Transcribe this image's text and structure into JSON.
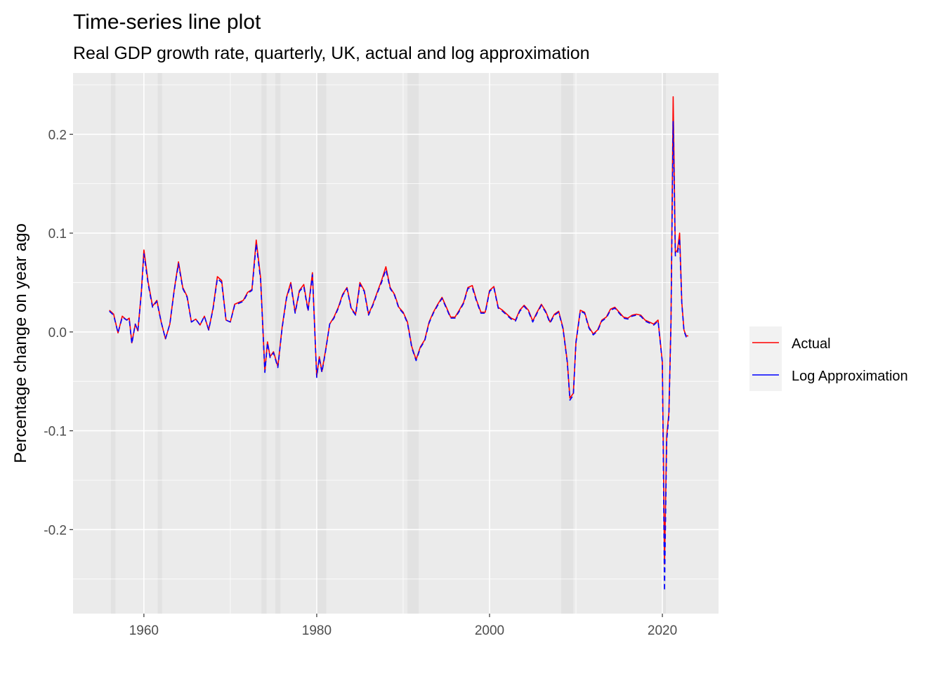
{
  "colors": {
    "panel": "#ebebeb",
    "grid_major": "#ffffff",
    "recession_band": "#d9d9d9",
    "actual": "#ff0000",
    "log_approx": "#0000ff",
    "legend_key_bg": "#f2f2f2"
  },
  "chart_data": {
    "type": "line",
    "title": "Time-series line plot",
    "subtitle": "Real GDP growth rate, quarterly, UK, actual and log approximation",
    "xlabel": "",
    "ylabel": "Percentage change on year ago",
    "xlim": [
      1951.8,
      2026.5
    ],
    "ylim": [
      -0.285,
      0.262
    ],
    "x_ticks": [
      1960,
      1980,
      2000,
      2020
    ],
    "x_tick_labels": [
      "1960",
      "1980",
      "2000",
      "2020"
    ],
    "y_ticks": [
      -0.2,
      -0.1,
      0.0,
      0.1,
      0.2
    ],
    "y_tick_labels": [
      "-0.2",
      "-0.1",
      "0.0",
      "0.1",
      "0.2"
    ],
    "grid": true,
    "legend_position": "right",
    "recession_shading": [
      [
        1956.2,
        1956.7
      ],
      [
        1961.6,
        1962.1
      ],
      [
        1973.6,
        1974.2
      ],
      [
        1975.2,
        1975.8
      ],
      [
        1980.0,
        1981.1
      ],
      [
        1990.5,
        1991.8
      ],
      [
        2008.3,
        2009.7
      ],
      [
        2020.0,
        2020.4
      ]
    ],
    "x": [
      1956.0,
      1956.5,
      1957.0,
      1957.5,
      1958.0,
      1958.3,
      1958.6,
      1959.0,
      1959.3,
      1959.7,
      1960.0,
      1960.5,
      1961.0,
      1961.5,
      1962.0,
      1962.5,
      1963.0,
      1963.5,
      1964.0,
      1964.5,
      1965.0,
      1965.5,
      1966.0,
      1966.5,
      1967.0,
      1967.5,
      1968.0,
      1968.5,
      1969.0,
      1969.5,
      1970.0,
      1970.5,
      1971.0,
      1971.5,
      1972.0,
      1972.5,
      1973.0,
      1973.5,
      1974.0,
      1974.3,
      1974.6,
      1975.0,
      1975.5,
      1976.0,
      1976.5,
      1977.0,
      1977.5,
      1978.0,
      1978.5,
      1979.0,
      1979.5,
      1980.0,
      1980.3,
      1980.6,
      1981.0,
      1981.5,
      1982.0,
      1982.5,
      1983.0,
      1983.5,
      1984.0,
      1984.5,
      1985.0,
      1985.5,
      1986.0,
      1986.5,
      1987.0,
      1987.5,
      1988.0,
      1988.5,
      1989.0,
      1989.5,
      1990.0,
      1990.5,
      1991.0,
      1991.5,
      1992.0,
      1992.5,
      1993.0,
      1993.5,
      1994.0,
      1994.5,
      1995.0,
      1995.5,
      1996.0,
      1996.5,
      1997.0,
      1997.5,
      1998.0,
      1998.5,
      1999.0,
      1999.5,
      2000.0,
      2000.5,
      2001.0,
      2001.5,
      2002.0,
      2002.5,
      2003.0,
      2003.5,
      2004.0,
      2004.5,
      2005.0,
      2005.5,
      2006.0,
      2006.5,
      2007.0,
      2007.5,
      2008.0,
      2008.5,
      2009.0,
      2009.3,
      2009.7,
      2010.0,
      2010.5,
      2011.0,
      2011.5,
      2012.0,
      2012.5,
      2013.0,
      2013.5,
      2014.0,
      2014.5,
      2015.0,
      2015.5,
      2016.0,
      2016.5,
      2017.0,
      2017.5,
      2018.0,
      2018.5,
      2019.0,
      2019.5,
      2020.0,
      2020.25,
      2020.5,
      2020.75,
      2021.0,
      2021.25,
      2021.5,
      2021.75,
      2022.0,
      2022.25,
      2022.5,
      2022.75,
      2023.0
    ],
    "series": [
      {
        "name": "Actual",
        "values": [
          0.022,
          0.018,
          -0.001,
          0.016,
          0.012,
          0.014,
          -0.011,
          0.008,
          0.001,
          0.04,
          0.083,
          0.05,
          0.026,
          0.032,
          0.01,
          -0.007,
          0.008,
          0.042,
          0.071,
          0.045,
          0.036,
          0.01,
          0.013,
          0.007,
          0.016,
          0.002,
          0.024,
          0.056,
          0.052,
          0.012,
          0.01,
          0.028,
          0.03,
          0.032,
          0.04,
          0.043,
          0.093,
          0.055,
          -0.04,
          -0.01,
          -0.025,
          -0.02,
          -0.035,
          0.005,
          0.035,
          0.05,
          0.02,
          0.042,
          0.048,
          0.022,
          0.06,
          -0.045,
          -0.025,
          -0.04,
          -0.02,
          0.008,
          0.015,
          0.025,
          0.038,
          0.045,
          0.024,
          0.018,
          0.05,
          0.042,
          0.018,
          0.028,
          0.04,
          0.052,
          0.066,
          0.045,
          0.038,
          0.025,
          0.02,
          0.01,
          -0.015,
          -0.028,
          -0.015,
          -0.008,
          0.01,
          0.02,
          0.028,
          0.035,
          0.025,
          0.015,
          0.015,
          0.022,
          0.03,
          0.045,
          0.047,
          0.032,
          0.02,
          0.02,
          0.042,
          0.046,
          0.025,
          0.022,
          0.018,
          0.014,
          0.012,
          0.022,
          0.027,
          0.022,
          0.011,
          0.02,
          0.028,
          0.021,
          0.01,
          0.018,
          0.021,
          0.004,
          -0.03,
          -0.067,
          -0.062,
          -0.01,
          0.022,
          0.02,
          0.005,
          -0.002,
          0.002,
          0.012,
          0.015,
          0.023,
          0.025,
          0.02,
          0.015,
          0.014,
          0.017,
          0.018,
          0.017,
          0.012,
          0.01,
          0.008,
          0.012,
          -0.03,
          -0.235,
          -0.105,
          -0.082,
          0.01,
          0.238,
          0.08,
          0.083,
          0.1,
          0.03,
          0.002,
          -0.004,
          -0.004
        ]
      },
      {
        "name": "Log Approximation",
        "values": [
          0.021,
          0.017,
          -0.001,
          0.015,
          0.012,
          0.013,
          -0.012,
          0.008,
          0.001,
          0.039,
          0.079,
          0.048,
          0.025,
          0.031,
          0.01,
          -0.007,
          0.008,
          0.041,
          0.069,
          0.044,
          0.035,
          0.01,
          0.013,
          0.007,
          0.016,
          0.002,
          0.023,
          0.054,
          0.05,
          0.012,
          0.01,
          0.027,
          0.029,
          0.031,
          0.039,
          0.042,
          0.089,
          0.053,
          -0.041,
          -0.011,
          -0.026,
          -0.021,
          -0.036,
          0.004,
          0.034,
          0.048,
          0.019,
          0.041,
          0.046,
          0.021,
          0.058,
          -0.046,
          -0.026,
          -0.041,
          -0.021,
          0.008,
          0.014,
          0.024,
          0.037,
          0.044,
          0.023,
          0.017,
          0.048,
          0.041,
          0.017,
          0.027,
          0.039,
          0.05,
          0.063,
          0.044,
          0.037,
          0.024,
          0.019,
          0.009,
          -0.016,
          -0.029,
          -0.016,
          -0.009,
          0.009,
          0.019,
          0.027,
          0.034,
          0.024,
          0.014,
          0.014,
          0.021,
          0.029,
          0.044,
          0.045,
          0.031,
          0.019,
          0.019,
          0.041,
          0.045,
          0.024,
          0.021,
          0.017,
          0.013,
          0.011,
          0.021,
          0.026,
          0.021,
          0.01,
          0.019,
          0.027,
          0.02,
          0.009,
          0.017,
          0.02,
          0.003,
          -0.031,
          -0.069,
          -0.064,
          -0.011,
          0.021,
          0.019,
          0.004,
          -0.003,
          0.001,
          0.011,
          0.014,
          0.022,
          0.024,
          0.019,
          0.014,
          0.013,
          0.016,
          0.017,
          0.016,
          0.011,
          0.009,
          0.007,
          0.011,
          -0.031,
          -0.262,
          -0.11,
          -0.085,
          0.009,
          0.213,
          0.077,
          0.079,
          0.095,
          0.029,
          0.001,
          -0.005,
          -0.005
        ]
      }
    ]
  }
}
